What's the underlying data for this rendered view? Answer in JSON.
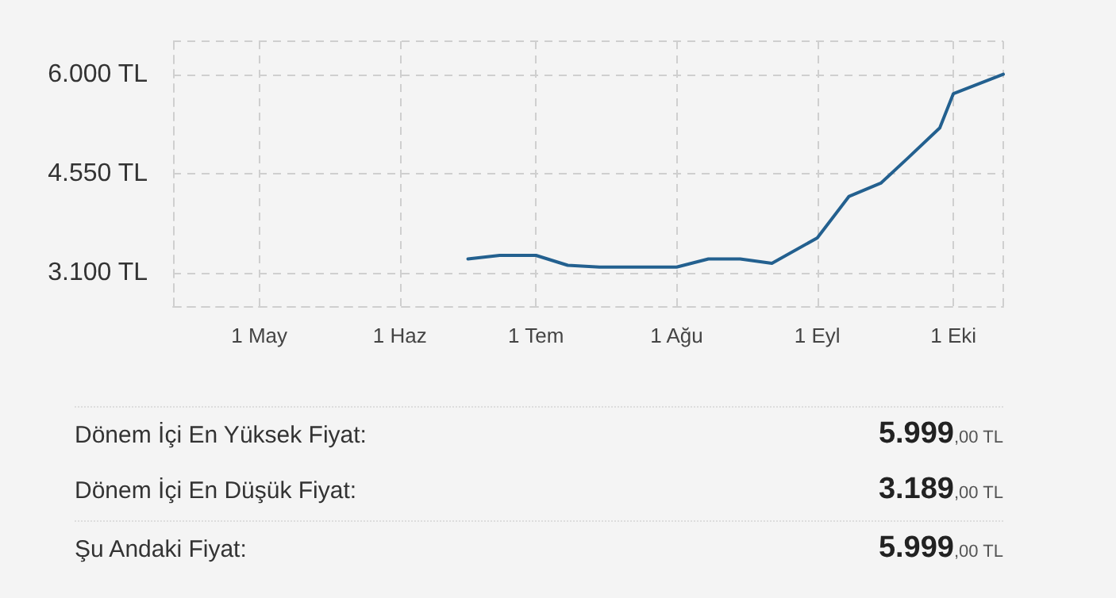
{
  "chart_data": [
    {
      "type": "line",
      "color": "#23608f",
      "grid": true,
      "marker": "none",
      "line_style": "solid",
      "x": [
        "--06-16",
        "--06-23",
        "--07-01",
        "--07-08",
        "--07-15",
        "--08-01",
        "--08-08",
        "--08-15",
        "--08-22",
        "--09-01",
        "--09-08",
        "--09-15",
        "--09-21",
        "--09-28",
        "--10-01",
        "--10-12"
      ],
      "values": [
        3307,
        3360,
        3360,
        3215,
        3189,
        3189,
        3307,
        3307,
        3245,
        3614,
        4220,
        4412,
        4780,
        5218,
        5717,
        5999
      ],
      "xlim": [
        "--04-12",
        "--10-12"
      ],
      "xticks": [
        {
          "value": "--05-01",
          "label": "1 May"
        },
        {
          "value": "--06-01",
          "label": "1 Haz"
        },
        {
          "value": "--07-01",
          "label": "1 Tem"
        },
        {
          "value": "--08-01",
          "label": "1 Ağu"
        },
        {
          "value": "--09-01",
          "label": "1 Eyl"
        },
        {
          "value": "--10-01",
          "label": "1 Eki"
        }
      ],
      "ylim": [
        2620,
        6480
      ],
      "yticks": [
        {
          "value": 3100,
          "label": "3.100 TL"
        },
        {
          "value": 4550,
          "label": "4.550 TL"
        },
        {
          "value": 6000,
          "label": "6.000 TL"
        }
      ]
    },
    {
      "type": "other",
      "annotations": [
        "Dönem İçi En Yüksek Fiyat:",
        "5.999,00 TL",
        "Dönem İçi En Düşük Fiyat:",
        "3.189,00 TL",
        "Şu Andaki Fiyat:",
        "5.999,00 TL"
      ]
    }
  ]
}
